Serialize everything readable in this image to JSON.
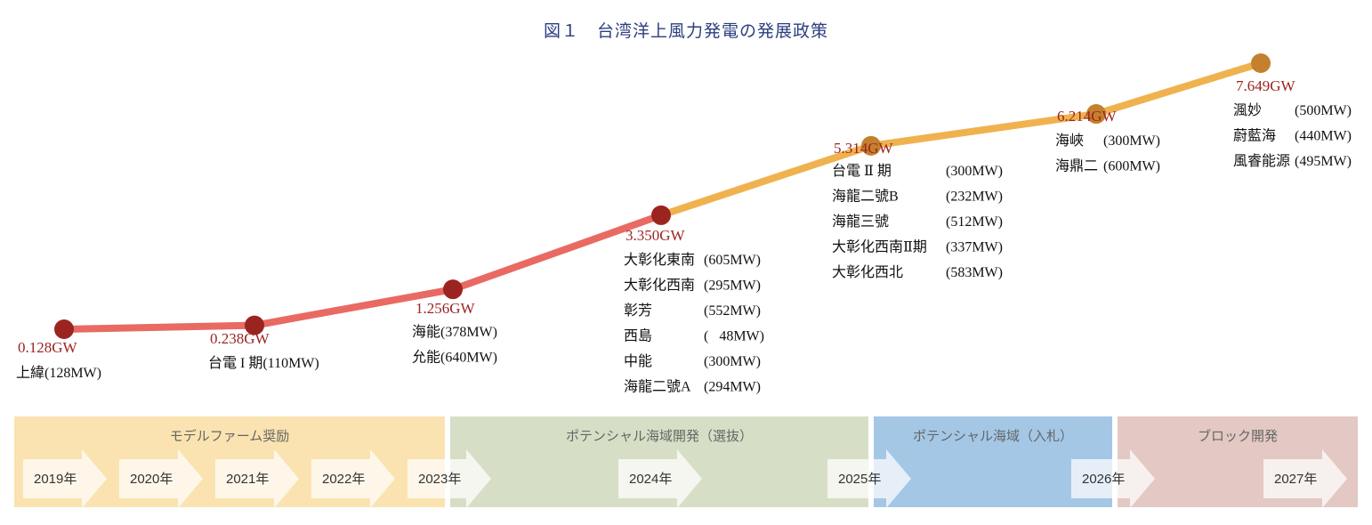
{
  "title": "図１　台湾洋上風力発電の発展政策",
  "colors": {
    "line_early": "#e96a63",
    "line_late": "#f0b24e",
    "point_early": "#9c2420",
    "point_late": "#c4802e",
    "gw_label": "#9c2420"
  },
  "chart_data": {
    "type": "line",
    "title": "図１　台湾洋上風力発電の発展政策",
    "unit": "GW",
    "points": [
      {
        "label": "0.128GW",
        "value": 0.128,
        "projects": [
          "上緯(128MW)"
        ]
      },
      {
        "label": "0.238GW",
        "value": 0.238,
        "projects": [
          "台電 I 期(110MW)"
        ]
      },
      {
        "label": "1.256GW",
        "value": 1.256,
        "projects": [
          "海能(378MW)",
          "允能(640MW)"
        ]
      },
      {
        "label": "3.350GW",
        "value": 3.35,
        "projects": [
          {
            "name": "大彰化東南",
            "cap": "(605MW)"
          },
          {
            "name": "大彰化西南",
            "cap": "(295MW)"
          },
          {
            "name": "彰芳",
            "cap": "(552MW)"
          },
          {
            "name": "西島",
            "cap": "(   48MW)"
          },
          {
            "name": "中能",
            "cap": "(300MW)"
          },
          {
            "name": "海龍二號A",
            "cap": "(294MW)"
          }
        ]
      },
      {
        "label": "5.314GW",
        "value": 5.314,
        "projects": [
          {
            "name": "台電 Ⅱ 期",
            "cap": "(300MW)"
          },
          {
            "name": "海龍二號B",
            "cap": "(232MW)"
          },
          {
            "name": "海龍三號",
            "cap": "(512MW)"
          },
          {
            "name": "大彰化西南Ⅱ期",
            "cap": "(337MW)"
          },
          {
            "name": "大彰化西北",
            "cap": "(583MW)"
          }
        ]
      },
      {
        "label": "6.214GW",
        "value": 6.214,
        "projects": [
          {
            "name": "海峽",
            "cap": "(300MW)"
          },
          {
            "name": "海鼎二",
            "cap": "(600MW)"
          }
        ]
      },
      {
        "label": "7.649GW",
        "value": 7.649,
        "projects": [
          {
            "name": "渢妙",
            "cap": "(500MW)"
          },
          {
            "name": "蔚藍海",
            "cap": "(440MW)"
          },
          {
            "name": "風睿能源",
            "cap": "(495MW)"
          }
        ]
      }
    ],
    "phases": [
      {
        "label": "モデルファーム奨励",
        "color": "#fae3b0"
      },
      {
        "label": "ポテンシャル海域開発（選抜）",
        "color": "#d6dfc6"
      },
      {
        "label": "ポテンシャル海域（入札）",
        "color": "#a4c7e6"
      },
      {
        "label": "ブロック開発",
        "color": "#e3c8c3"
      }
    ],
    "years": [
      "2019年",
      "2020年",
      "2021年",
      "2022年",
      "2023年",
      "2024年",
      "2025年",
      "2026年",
      "2027年"
    ]
  }
}
